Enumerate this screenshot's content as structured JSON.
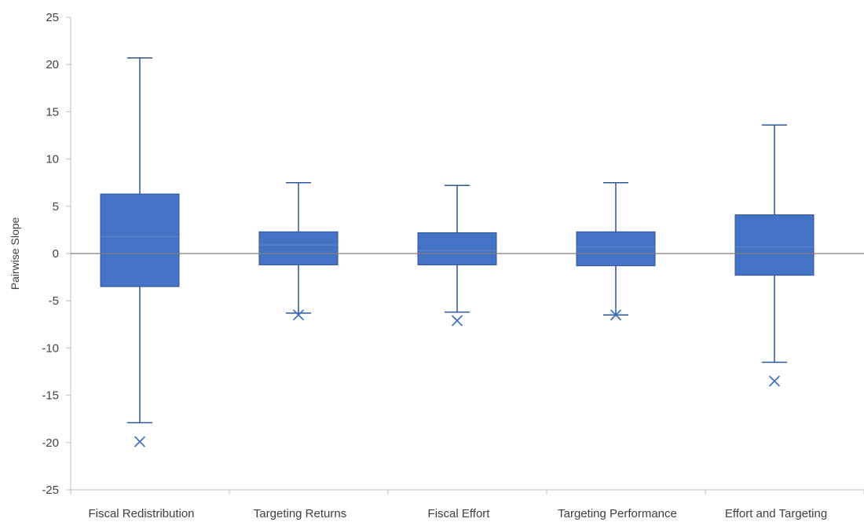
{
  "chart_data": {
    "type": "box",
    "ylabel": "Pairwise Slope",
    "ylim": [
      -25,
      25
    ],
    "yticks": [
      25,
      20,
      15,
      10,
      5,
      0,
      -5,
      -10,
      -15,
      -20,
      -25
    ],
    "zero_line": true,
    "grid": false,
    "colors": {
      "box_fill": "#4472C4",
      "box_stroke": "#2F5597",
      "whisker": "#2F5597",
      "median": "#5B7FC2",
      "zero_line": "#808080",
      "axis": "#BFBFBF",
      "marker": "#4472C4"
    },
    "categories": [
      "Fiscal Redistribution",
      "Targeting Returns",
      "Fiscal Effort",
      "Targeting Performance",
      "Effort and Targeting"
    ],
    "boxes": [
      {
        "category": "Fiscal Redistribution",
        "whisker_low": -17.9,
        "q1": -3.5,
        "median": 1.8,
        "q3": 6.3,
        "whisker_high": 20.7,
        "mean": -19.9
      },
      {
        "category": "Targeting Returns",
        "whisker_low": -6.3,
        "q1": -1.2,
        "median": 0.9,
        "q3": 2.3,
        "whisker_high": 7.5,
        "mean": -6.5
      },
      {
        "category": "Fiscal Effort",
        "whisker_low": -6.2,
        "q1": -1.2,
        "median": 0.3,
        "q3": 2.2,
        "whisker_high": 7.2,
        "mean": -7.1
      },
      {
        "category": "Targeting Performance",
        "whisker_low": -6.5,
        "q1": -1.3,
        "median": 0.7,
        "q3": 2.3,
        "whisker_high": 7.5,
        "mean": -6.5
      },
      {
        "category": "Effort and Targeting",
        "whisker_low": -11.5,
        "q1": -2.3,
        "median": 0.7,
        "q3": 4.1,
        "whisker_high": 13.6,
        "mean": -13.5
      }
    ]
  }
}
